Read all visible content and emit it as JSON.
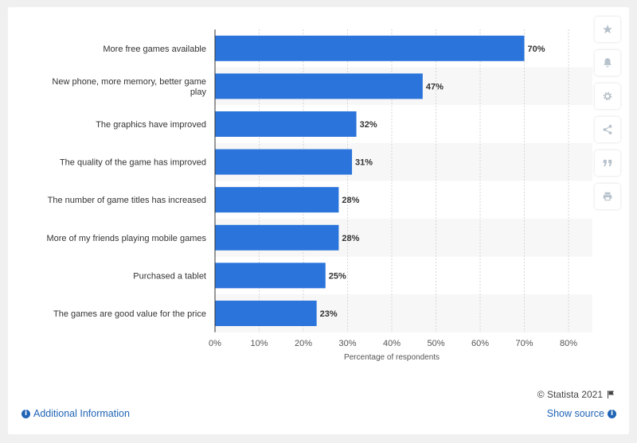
{
  "chart_data": {
    "type": "bar",
    "orientation": "horizontal",
    "categories": [
      "More free games available",
      "New phone, more memory, better game play",
      "The graphics have improved",
      "The quality of the game has improved",
      "The number of game titles has increased",
      "More of my friends playing mobile games",
      "Purchased a tablet",
      "The games are good value for the price"
    ],
    "category_lines": [
      [
        "More free games available"
      ],
      [
        "New phone, more memory, better game",
        "play"
      ],
      [
        "The graphics have improved"
      ],
      [
        "The quality of the game has improved"
      ],
      [
        "The number of game titles has increased"
      ],
      [
        "More of my friends playing mobile games"
      ],
      [
        "Purchased a tablet"
      ],
      [
        "The games are good value for the price"
      ]
    ],
    "values": [
      70,
      47,
      32,
      31,
      28,
      28,
      25,
      23
    ],
    "value_labels": [
      "70%",
      "47%",
      "32%",
      "31%",
      "28%",
      "28%",
      "25%",
      "23%"
    ],
    "xlabel": "Percentage of respondents",
    "ylabel": "",
    "xlim": [
      0,
      80
    ],
    "ticks": [
      0,
      10,
      20,
      30,
      40,
      50,
      60,
      70,
      80
    ],
    "tick_labels": [
      "0%",
      "10%",
      "20%",
      "30%",
      "40%",
      "50%",
      "60%",
      "70%",
      "80%"
    ],
    "grid": true,
    "bar_color": "#2a74db"
  },
  "footer": {
    "additional_info": "Additional Information",
    "show_source": "Show source",
    "credit": "© Statista 2021"
  },
  "sidebar_icons": [
    "star-icon",
    "bell-icon",
    "gear-icon",
    "share-icon",
    "quote-icon",
    "print-icon"
  ],
  "colors": {
    "link": "#1f64b5",
    "bar": "#2a74db"
  }
}
